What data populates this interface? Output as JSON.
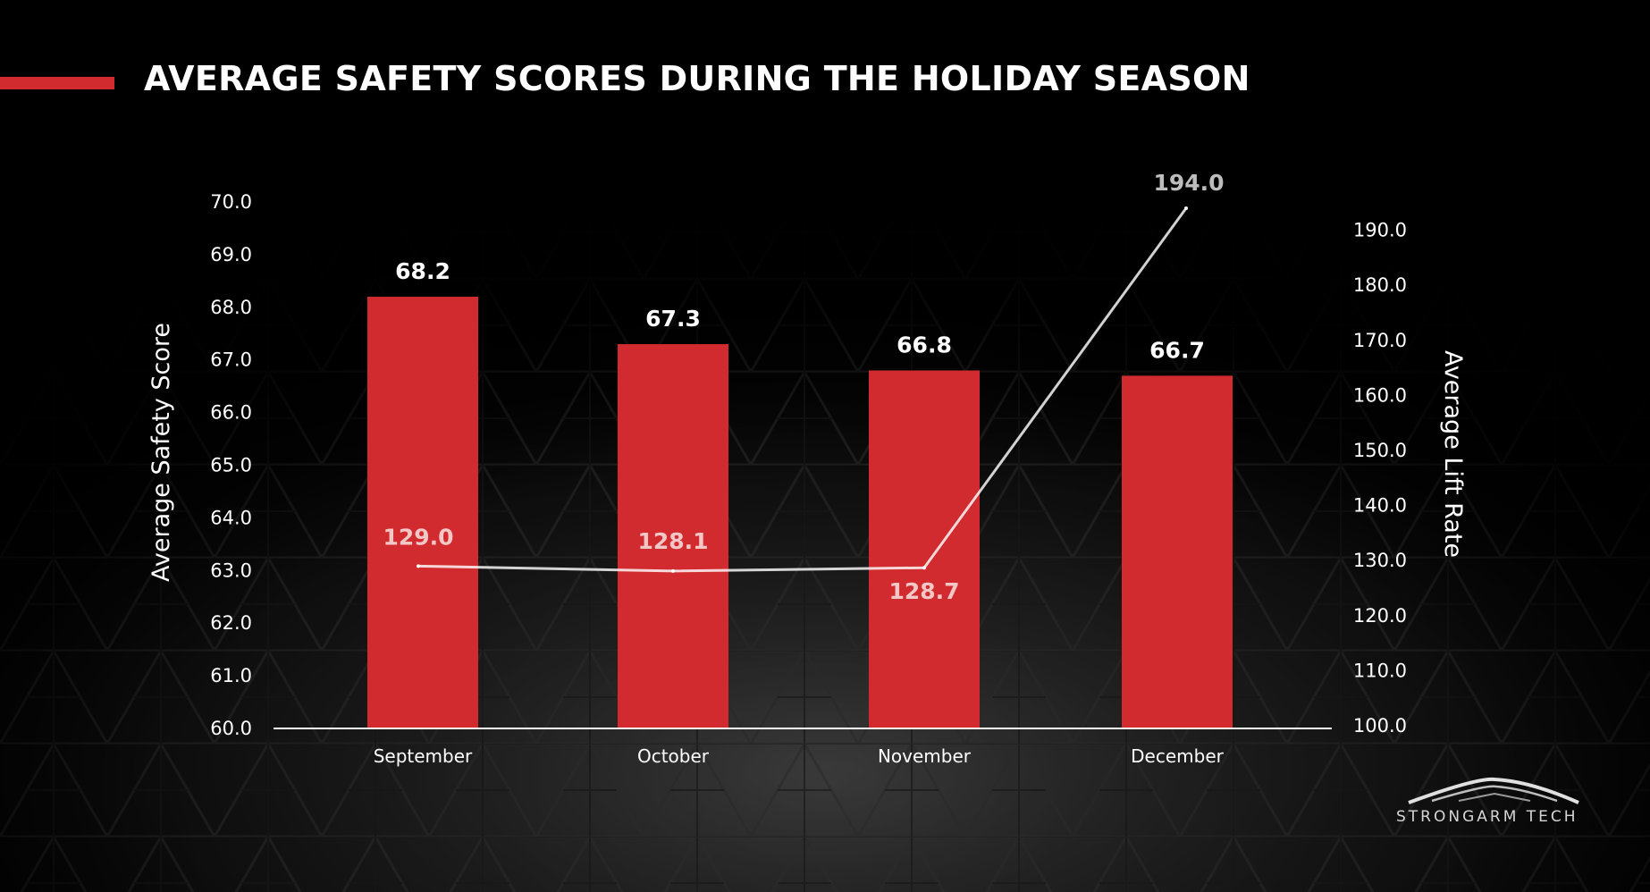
{
  "title": "AVERAGE SAFETY SCORES DURING THE HOLIDAY SEASON",
  "brand": {
    "logo_text": "STRONGARM TECH"
  },
  "colors": {
    "bar": "#d12a2f",
    "line": "#ffffff",
    "accent": "#d12a2f"
  },
  "chart_data": {
    "type": "bar",
    "title": "AVERAGE SAFETY SCORES DURING THE HOLIDAY SEASON",
    "categories": [
      "September",
      "October",
      "November",
      "December"
    ],
    "series": [
      {
        "name": "Average Safety Score",
        "type": "bar",
        "axis": "left",
        "values": [
          68.2,
          67.3,
          66.8,
          66.7
        ],
        "labels": [
          "68.2",
          "67.3",
          "66.8",
          "66.7"
        ]
      },
      {
        "name": "Average Lift Rate",
        "type": "line",
        "axis": "right",
        "values": [
          129.0,
          128.1,
          128.7,
          194.0
        ],
        "labels": [
          "129.0",
          "128.1",
          "128.7",
          "194.0"
        ]
      }
    ],
    "ylabel": "Average Safety Score",
    "y2label": "Average Lift Rate",
    "ylim": [
      60,
      70
    ],
    "y2lim": [
      100,
      195
    ],
    "yticks": [
      "60.0",
      "61.0",
      "62.0",
      "63.0",
      "64.0",
      "65.0",
      "66.0",
      "67.0",
      "68.0",
      "69.0",
      "70.0"
    ],
    "y2ticks": [
      "100.0",
      "110.0",
      "120.0",
      "130.0",
      "140.0",
      "150.0",
      "160.0",
      "170.0",
      "180.0",
      "190.0"
    ],
    "grid": false,
    "legend": "none"
  }
}
